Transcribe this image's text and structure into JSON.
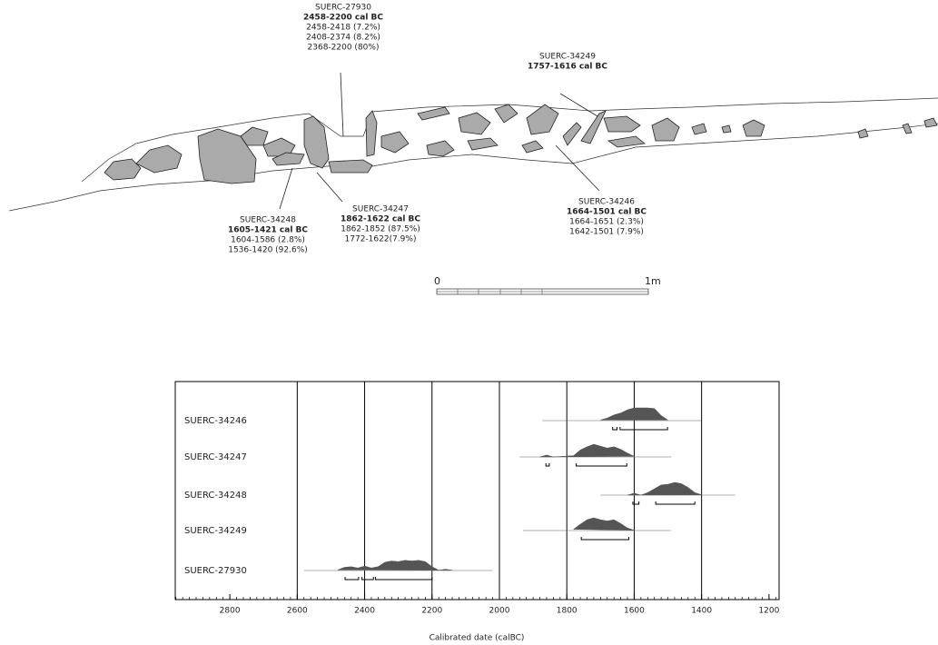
{
  "section": {
    "annotations": [
      {
        "lab": "SUERC-27930",
        "date": "2458-2200 cal BC",
        "ranges": [
          "2458-2418 (7.2%)",
          "2408-2374 (8.2%)",
          "2368-2200 (80%)"
        ]
      },
      {
        "lab": "SUERC-34249",
        "date": "1757-1616 cal BC",
        "ranges": []
      },
      {
        "lab": "SUERC-34246",
        "date": "1664-1501 cal BC",
        "ranges": [
          "1664-1651 (2.3%)",
          "1642-1501 (7.9%)"
        ]
      },
      {
        "lab": "SUERC-34247",
        "date": "1862-1622 cal BC",
        "ranges": [
          "1862-1852 (87.5%)",
          "1772-1622(7.9%)"
        ]
      },
      {
        "lab": "SUERC-34248",
        "date": "1605-1421 cal BC",
        "ranges": [
          "1604-1586 (2.8%)",
          "1536-1420 (92.6%)"
        ]
      }
    ],
    "scale_bar": {
      "start": "0",
      "end": "1m"
    }
  },
  "chart_data": {
    "type": "calibration",
    "x_label": "Calibrated date (calBC)",
    "xlim": [
      2962,
      1170
    ],
    "xticks": [
      2800,
      2600,
      2400,
      2200,
      2000,
      1800,
      1600,
      1400,
      1200
    ],
    "xgrid": [
      2600,
      2400,
      2200,
      2000,
      1800,
      1600,
      1400
    ],
    "minor_tick_step": 20,
    "color": "#555555",
    "series": [
      {
        "name": "SUERC-34246",
        "span": [
          1873,
          1400
        ],
        "ranges": [
          [
            1664,
            1651
          ],
          [
            1642,
            1501
          ]
        ],
        "x": [
          1700,
          1680,
          1660,
          1640,
          1620,
          1600,
          1580,
          1560,
          1540,
          1520,
          1500
        ],
        "values": [
          0.05,
          0.2,
          0.45,
          0.6,
          0.85,
          1,
          1,
          1,
          0.95,
          0.4,
          0.05
        ]
      },
      {
        "name": "SUERC-34247",
        "span": [
          1940,
          1490
        ],
        "ranges": [
          [
            1862,
            1852
          ],
          [
            1772,
            1622
          ]
        ],
        "x": [
          1880,
          1860,
          1840,
          1780,
          1760,
          1740,
          1720,
          1700,
          1680,
          1660,
          1640,
          1620,
          1600
        ],
        "values": [
          0,
          0.15,
          0,
          0.1,
          0.55,
          0.8,
          1,
          0.85,
          0.7,
          0.8,
          0.6,
          0.3,
          0.05
        ]
      },
      {
        "name": "SUERC-34248",
        "span": [
          1700,
          1300
        ],
        "ranges": [
          [
            1604,
            1586
          ],
          [
            1536,
            1420
          ]
        ],
        "x": [
          1620,
          1600,
          1580,
          1560,
          1540,
          1520,
          1500,
          1480,
          1460,
          1440,
          1420,
          1400
        ],
        "values": [
          0,
          0.15,
          0,
          0.2,
          0.5,
          0.8,
          0.85,
          1,
          0.9,
          0.6,
          0.2,
          0.02
        ]
      },
      {
        "name": "SUERC-34249",
        "span": [
          1930,
          1490
        ],
        "ranges": [
          [
            1757,
            1616
          ]
        ],
        "x": [
          1780,
          1760,
          1740,
          1720,
          1700,
          1680,
          1660,
          1640,
          1620,
          1600
        ],
        "values": [
          0.1,
          0.5,
          0.85,
          1,
          0.85,
          0.75,
          0.85,
          0.55,
          0.2,
          0.02
        ]
      },
      {
        "name": "SUERC-27930",
        "span": [
          2580,
          2020
        ],
        "ranges": [
          [
            2458,
            2418
          ],
          [
            2408,
            2374
          ],
          [
            2368,
            2200
          ]
        ],
        "x": [
          2480,
          2460,
          2440,
          2420,
          2400,
          2380,
          2360,
          2340,
          2320,
          2300,
          2280,
          2260,
          2240,
          2220,
          2200,
          2180,
          2160,
          2140
        ],
        "values": [
          0.05,
          0.25,
          0.3,
          0.2,
          0.35,
          0.2,
          0.3,
          0.65,
          0.75,
          0.7,
          0.8,
          0.75,
          0.8,
          0.7,
          0.3,
          0.02,
          0.1,
          0.02
        ]
      }
    ]
  }
}
